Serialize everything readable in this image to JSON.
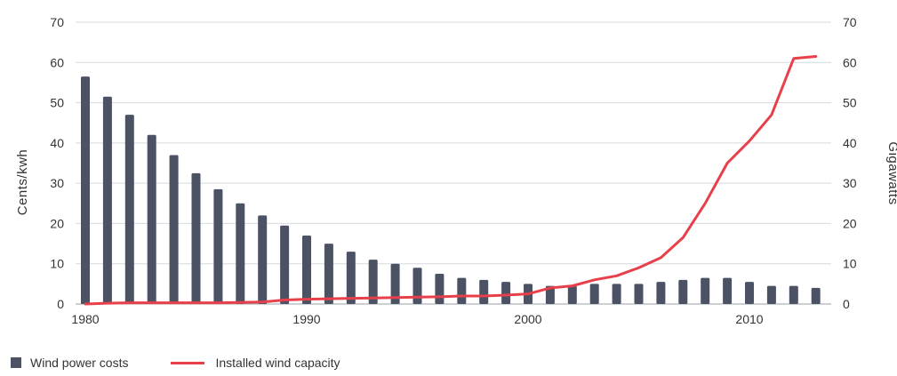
{
  "chart_data": {
    "type": "bar",
    "years": [
      1980,
      1981,
      1982,
      1983,
      1984,
      1985,
      1986,
      1987,
      1988,
      1989,
      1990,
      1991,
      1992,
      1993,
      1994,
      1995,
      1996,
      1997,
      1998,
      1999,
      2000,
      2001,
      2002,
      2003,
      2004,
      2005,
      2006,
      2007,
      2008,
      2009,
      2010,
      2011,
      2012,
      2013
    ],
    "series": [
      {
        "name": "Wind power costs",
        "type": "bar",
        "axis": "left",
        "color": "#4a5263",
        "values": [
          56.5,
          51.5,
          47,
          42,
          37,
          32.5,
          28.5,
          25,
          22,
          19.5,
          17,
          15,
          13,
          11,
          10,
          9,
          7.5,
          6.5,
          6,
          5.5,
          5,
          4.5,
          4.5,
          5,
          5,
          5,
          5.5,
          6,
          6.5,
          6.5,
          5.5,
          4.5,
          4.5,
          4
        ]
      },
      {
        "name": "Installed wind capacity",
        "type": "line",
        "axis": "right",
        "color": "#e8404a",
        "values": [
          0,
          0.2,
          0.3,
          0.3,
          0.3,
          0.3,
          0.3,
          0.4,
          0.5,
          1,
          1.2,
          1.3,
          1.4,
          1.5,
          1.6,
          1.7,
          1.8,
          2,
          2,
          2.2,
          2.5,
          4,
          4.5,
          6,
          7,
          9,
          11.5,
          16.5,
          25,
          35,
          40.5,
          47,
          61,
          61.5
        ]
      }
    ],
    "x_ticks": [
      "1980",
      "1990",
      "2000",
      "2010"
    ],
    "y_left": {
      "label": "Cents/kwh",
      "range": [
        0,
        70
      ],
      "ticks": [
        "0",
        "10",
        "20",
        "30",
        "40",
        "50",
        "60",
        "70"
      ]
    },
    "y_right": {
      "label": "Gigawatts",
      "range": [
        0,
        70
      ],
      "ticks": [
        "0",
        "10",
        "20",
        "30",
        "40",
        "50",
        "60",
        "70"
      ]
    },
    "grid": true,
    "legend_position": "bottom-left"
  },
  "legend": {
    "bars_label": "Wind power costs",
    "line_label": "Installed wind capacity"
  }
}
